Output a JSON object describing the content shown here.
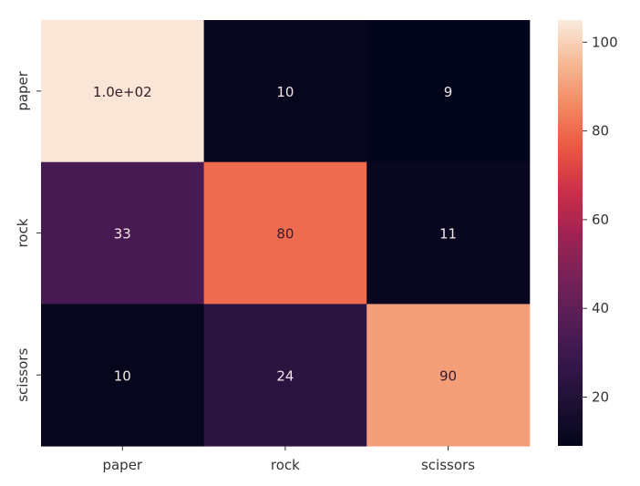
{
  "chart_data": {
    "type": "heatmap",
    "title": "",
    "xlabel": "",
    "ylabel": "",
    "x_categories": [
      "paper",
      "rock",
      "scissors"
    ],
    "y_categories": [
      "paper",
      "rock",
      "scissors"
    ],
    "values": [
      [
        104,
        10,
        9
      ],
      [
        33,
        80,
        11
      ],
      [
        10,
        24,
        90
      ]
    ],
    "annotations": [
      [
        "1.0e+02",
        "10",
        "9"
      ],
      [
        "33",
        "80",
        "11"
      ],
      [
        "10",
        "24",
        "90"
      ]
    ],
    "colorbar": {
      "min": 9,
      "max": 105,
      "ticks": [
        "20",
        "40",
        "60",
        "80",
        "100"
      ],
      "colormap": "rocket"
    },
    "grid": false,
    "legend": "colorbar-right"
  }
}
